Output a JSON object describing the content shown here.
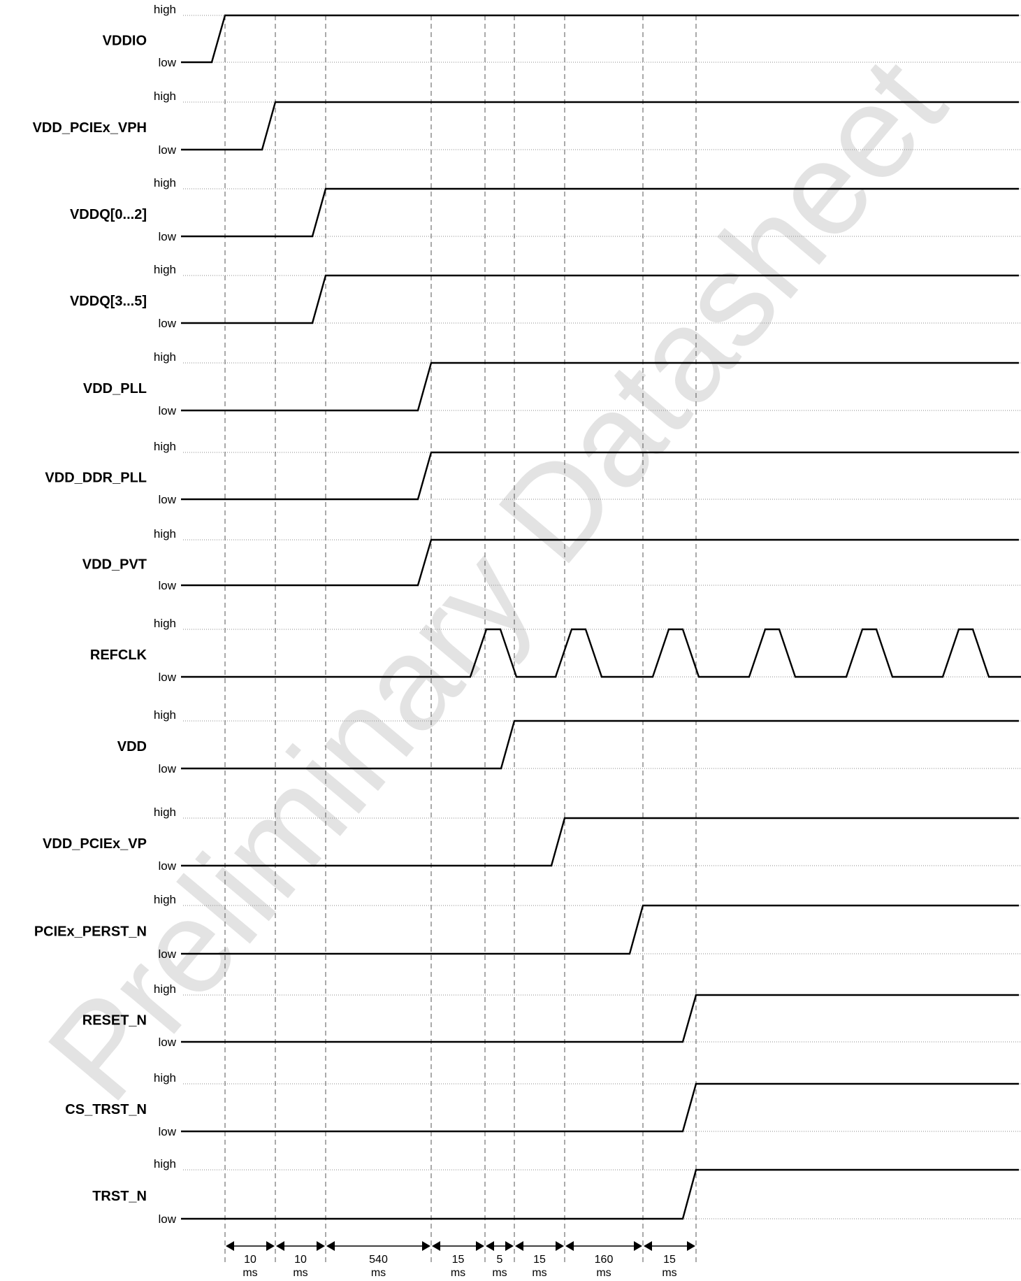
{
  "watermark": "Preliminary Datasheet",
  "level_labels": {
    "high": "high",
    "low": "low"
  },
  "signals": [
    {
      "name": "VDDIO",
      "rise_edge": 0
    },
    {
      "name": "VDD_PCIEx_VPH",
      "rise_edge": 1
    },
    {
      "name": "VDDQ[0...2]",
      "rise_edge": 2
    },
    {
      "name": "VDDQ[3...5]",
      "rise_edge": 2
    },
    {
      "name": "VDD_PLL",
      "rise_edge": 3
    },
    {
      "name": "VDD_DDR_PLL",
      "rise_edge": 3
    },
    {
      "name": "VDD_PVT",
      "rise_edge": 3
    },
    {
      "name": "REFCLK",
      "clock": true,
      "clock_start_edge": 4
    },
    {
      "name": "VDD",
      "rise_edge": 5
    },
    {
      "name": "VDD_PCIEx_VP",
      "rise_edge": 6
    },
    {
      "name": "PCIEx_PERST_N",
      "rise_edge": 7
    },
    {
      "name": "RESET_N",
      "rise_edge": 8
    },
    {
      "name": "CS_TRST_N",
      "rise_edge": 8
    },
    {
      "name": "TRST_N",
      "rise_edge": 8
    }
  ],
  "intervals": [
    {
      "value": "10",
      "unit": "ms"
    },
    {
      "value": "10",
      "unit": "ms"
    },
    {
      "value": "540",
      "unit": "ms"
    },
    {
      "value": "15",
      "unit": "ms"
    },
    {
      "value": "5",
      "unit": "ms"
    },
    {
      "value": "15",
      "unit": "ms"
    },
    {
      "value": "160",
      "unit": "ms"
    },
    {
      "value": "15",
      "unit": "ms"
    }
  ]
}
